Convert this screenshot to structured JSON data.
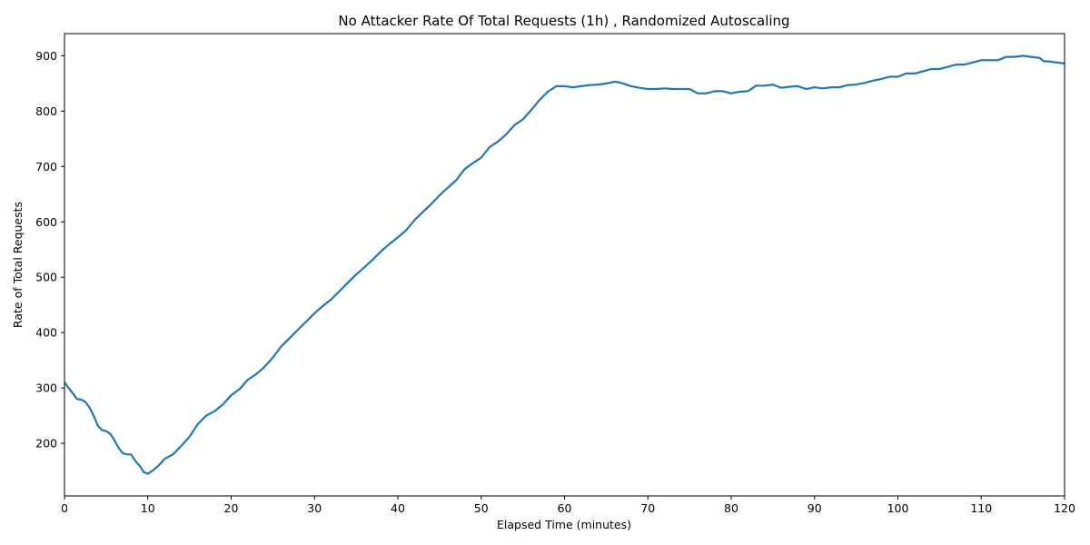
{
  "chart_data": {
    "type": "line",
    "title": "No Attacker Rate Of Total Requests (1h) , Randomized Autoscaling",
    "xlabel": "Elapsed Time (minutes)",
    "ylabel": "Rate of Total Requests",
    "xlim": [
      0,
      120
    ],
    "ylim": [
      105,
      940
    ],
    "xticks": [
      0,
      10,
      20,
      30,
      40,
      50,
      60,
      70,
      80,
      90,
      100,
      110,
      120
    ],
    "yticks": [
      200,
      300,
      400,
      500,
      600,
      700,
      800,
      900
    ],
    "grid": false,
    "legend": "none",
    "series": [
      {
        "color": "#1f77b4",
        "x": [
          0,
          1,
          1.5,
          2,
          2.5,
          3,
          3.5,
          4,
          4.5,
          5,
          5.5,
          6,
          6.5,
          7,
          7.5,
          8,
          8.5,
          9,
          9.5,
          10,
          10.5,
          11,
          11.5,
          12,
          13,
          14,
          15,
          16,
          17,
          18,
          19,
          20,
          21,
          22,
          23,
          24,
          25,
          26,
          27,
          28,
          29,
          30,
          31,
          32,
          33,
          34,
          35,
          36,
          37,
          38,
          39,
          40,
          41,
          42,
          43,
          44,
          45,
          46,
          47,
          48,
          49,
          50,
          51,
          52,
          53,
          54,
          55,
          56,
          57,
          58,
          59,
          60,
          61,
          62,
          63,
          64,
          65,
          66,
          66.5,
          67,
          68,
          69,
          70,
          71,
          72,
          73,
          74,
          75,
          76,
          77,
          78,
          79,
          80,
          81,
          82,
          83,
          84,
          85,
          86,
          87,
          88,
          89,
          90,
          91,
          92,
          93,
          94,
          95,
          96,
          97,
          98,
          99,
          100,
          101,
          102,
          103,
          104,
          105,
          106,
          107,
          108,
          109,
          110,
          111,
          112,
          113,
          114,
          115,
          116,
          117,
          117.5,
          118,
          119,
          120
        ],
        "y": [
          310,
          290,
          280,
          279,
          275,
          265,
          250,
          232,
          224,
          222,
          217,
          205,
          192,
          182,
          180,
          180,
          168,
          160,
          148,
          145,
          150,
          156,
          163,
          172,
          180,
          195,
          212,
          235,
          250,
          258,
          270,
          287,
          298,
          315,
          325,
          338,
          355,
          375,
          390,
          405,
          420,
          435,
          448,
          460,
          475,
          490,
          505,
          518,
          532,
          547,
          560,
          572,
          585,
          603,
          618,
          632,
          648,
          662,
          675,
          695,
          706,
          716,
          735,
          745,
          758,
          775,
          785,
          802,
          820,
          835,
          845,
          845,
          843,
          845,
          847,
          848,
          850,
          853,
          852,
          850,
          845,
          842,
          840,
          840,
          841,
          840,
          840,
          840,
          832,
          832,
          836,
          836,
          832,
          835,
          836,
          846,
          846,
          848,
          842,
          844,
          845,
          840,
          843,
          841,
          843,
          843,
          847,
          848,
          851,
          855,
          858,
          862,
          862,
          868,
          868,
          872,
          876,
          876,
          880,
          884,
          884,
          888,
          892,
          892,
          892,
          898,
          898,
          900,
          898,
          896,
          890,
          890,
          888,
          886
        ]
      }
    ]
  }
}
